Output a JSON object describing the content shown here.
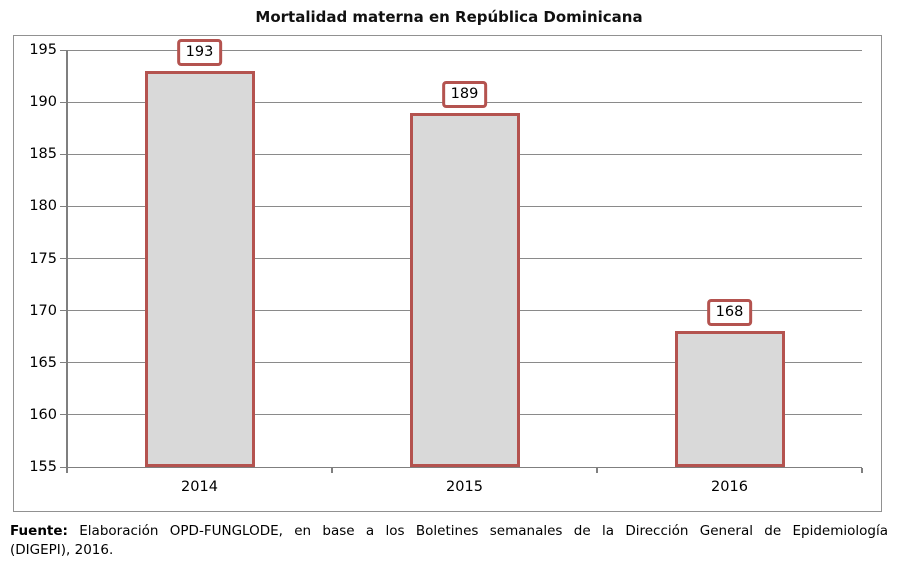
{
  "chart_data": {
    "type": "bar",
    "title": "Mortalidad materna en República Dominicana",
    "categories": [
      "2014",
      "2015",
      "2016"
    ],
    "values": [
      193,
      189,
      168
    ],
    "data_labels": [
      193,
      189,
      168
    ],
    "xlabel": "",
    "ylabel": "",
    "ylim": [
      155,
      195
    ],
    "yticks": [
      155,
      160,
      165,
      170,
      175,
      180,
      185,
      190,
      195
    ],
    "grid": "horizontal",
    "legend_position": "none",
    "colors": {
      "bar_fill": "#d9d9d9",
      "bar_border": "#b4534f",
      "label_box_fill": "#ffffff",
      "label_box_border": "#b4534f",
      "gridline": "#8a8a8a",
      "axis": "#7f7f7f",
      "frame_border": "#919191"
    }
  },
  "source_note": {
    "label": "Fuente:",
    "line1": "Elaboración OPD-FUNGLODE, en base a los Boletines semanales de la Dirección General de Epidemiología",
    "line2": "(DIGEPI), 2016."
  }
}
